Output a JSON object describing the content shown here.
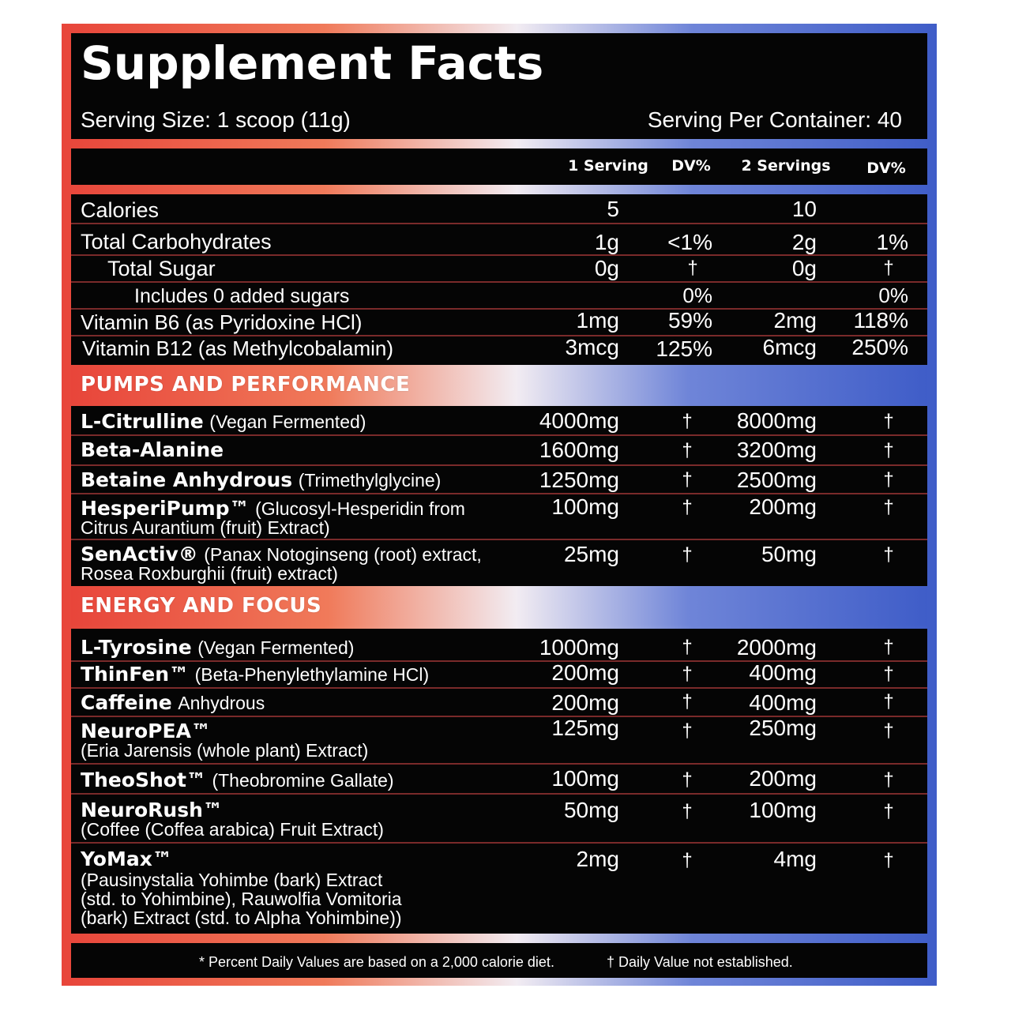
{
  "title": "Supplement Facts",
  "serving_size": "Serving Size: 1 scoop (11g)",
  "servings_per_container": "Serving Per Container: 40",
  "columns": {
    "serving1": "1 Serving",
    "dv1": "DV%",
    "serving2": "2 Servings",
    "dv2": "DV%"
  },
  "nutrients": [
    {
      "name": "Calories",
      "s1": "5",
      "dv1": "",
      "s2": "10",
      "dv2": ""
    },
    {
      "name": "Total Carbohydrates",
      "s1": "1g",
      "dv1": "<1%",
      "s2": "2g",
      "dv2": "1%"
    },
    {
      "name": "Total Sugar",
      "s1": "0g",
      "dv1": "†",
      "s2": "0g",
      "dv2": "†"
    },
    {
      "name": "Includes 0 added sugars",
      "s1": "",
      "dv1": "0%",
      "s2": "",
      "dv2": "0%"
    },
    {
      "name": "Vitamin B6 (as Pyridoxine HCl)",
      "s1": "1mg",
      "dv1": "59%",
      "s2": "2mg",
      "dv2": "118%"
    },
    {
      "name": "Vitamin B12 (as Methylcobalamin)",
      "s1": "3mcg",
      "dv1": "125%",
      "s2": "6mcg",
      "dv2": "250%"
    }
  ],
  "section1": {
    "label": "PUMPS AND PERFORMANCE",
    "items": [
      {
        "name": "L-Citrulline",
        "sub": "(Vegan Fermented)",
        "s1": "4000mg",
        "dv1": "†",
        "s2": "8000mg",
        "dv2": "†"
      },
      {
        "name": "Beta-Alanine",
        "sub": "",
        "s1": "1600mg",
        "dv1": "†",
        "s2": "3200mg",
        "dv2": "†"
      },
      {
        "name": "Betaine Anhydrous",
        "sub": "(Trimethylglycine)",
        "s1": "1250mg",
        "dv1": "†",
        "s2": "2500mg",
        "dv2": "†"
      },
      {
        "name": "HesperiPump™",
        "sub": "(Glucosyl-Hesperidin from",
        "desc": "Citrus Aurantium (fruit) Extract)",
        "s1": "100mg",
        "dv1": "†",
        "s2": "200mg",
        "dv2": "†"
      },
      {
        "name": "SenActiv®",
        "sub": "(Panax Notoginseng (root) extract,",
        "desc": "Rosea Roxburghii (fruit) extract)",
        "s1": "25mg",
        "dv1": "†",
        "s2": "50mg",
        "dv2": "†"
      }
    ]
  },
  "section2": {
    "label": "ENERGY AND FOCUS",
    "items": [
      {
        "name": "L-Tyrosine",
        "sub": "(Vegan Fermented)",
        "s1": "1000mg",
        "dv1": "†",
        "s2": "2000mg",
        "dv2": "†"
      },
      {
        "name": "ThinFen™",
        "sub": "(Beta-Phenylethylamine HCl)",
        "s1": "200mg",
        "dv1": "†",
        "s2": "400mg",
        "dv2": "†"
      },
      {
        "name": "Caffeine",
        "sub": "Anhydrous",
        "s1": "200mg",
        "dv1": "†",
        "s2": "400mg",
        "dv2": "†"
      },
      {
        "name": "NeuroPEA™",
        "sub": "",
        "desc": "(Eria Jarensis (whole plant) Extract)",
        "s1": "125mg",
        "dv1": "†",
        "s2": "250mg",
        "dv2": "†"
      },
      {
        "name": "TheoShot™",
        "sub": "(Theobromine Gallate)",
        "s1": "100mg",
        "dv1": "†",
        "s2": "200mg",
        "dv2": "†"
      },
      {
        "name": "NeuroRush™",
        "sub": "",
        "desc": "(Coffee (Coffea arabica) Fruit Extract)",
        "s1": "50mg",
        "dv1": "†",
        "s2": "100mg",
        "dv2": "†"
      },
      {
        "name": "YoMax™",
        "sub": "",
        "desc1": "(Pausinystalia Yohimbe (bark) Extract",
        "desc2": "(std. to Yohimbine), Rauwolfia Vomitoria",
        "desc3": "(bark) Extract (std. to Alpha Yohimbine))",
        "s1": "2mg",
        "dv1": "†",
        "s2": "4mg",
        "dv2": "†"
      }
    ]
  },
  "footer": {
    "left": "* Percent Daily Values are based on a 2,000 calorie diet.",
    "right": "† Daily Value not established."
  },
  "colors": {
    "red": "#e8453a",
    "blue": "#3f5dc8",
    "panel": "#050505"
  }
}
